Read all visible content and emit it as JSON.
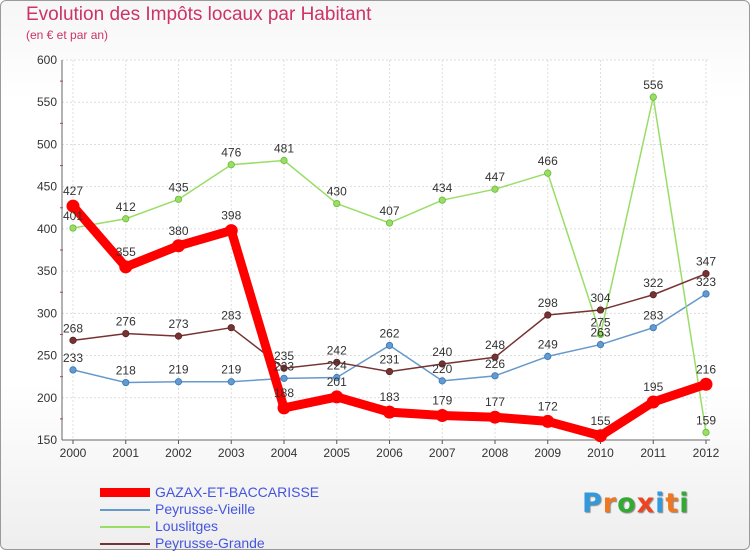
{
  "title": "Evolution des Impôts locaux par Habitant",
  "subtitle": "(en € et par an)",
  "logo": {
    "letters": [
      "P",
      "r",
      "o",
      "x",
      "i",
      "t",
      "i"
    ],
    "colors": [
      "#3399dd",
      "#ee7722",
      "#33aa33",
      "#ee4422",
      "#3399dd",
      "#ee7722",
      "#33aa33"
    ]
  },
  "chart_data": {
    "type": "line",
    "x": [
      "2000",
      "2001",
      "2002",
      "2003",
      "2004",
      "2005",
      "2006",
      "2007",
      "2008",
      "2009",
      "2010",
      "2011",
      "2012"
    ],
    "ylim": [
      150,
      600
    ],
    "yticks": [
      150,
      200,
      250,
      300,
      350,
      400,
      450,
      500,
      550,
      600
    ],
    "grid": true,
    "legend_position": "bottom-left",
    "series": [
      {
        "name": "GAZAX-ET-BACCARISSE",
        "color": "#ff0000",
        "values": [
          427,
          355,
          380,
          398,
          188,
          201,
          183,
          179,
          177,
          172,
          155,
          195,
          216
        ]
      },
      {
        "name": "Peyrusse-Vieille",
        "color": "#6699cc",
        "values": [
          233,
          218,
          219,
          219,
          223,
          224,
          262,
          220,
          226,
          249,
          263,
          283,
          323
        ]
      },
      {
        "name": "Louslitges",
        "color": "#99dd66",
        "values": [
          401,
          412,
          435,
          476,
          481,
          430,
          407,
          434,
          447,
          466,
          275,
          556,
          159
        ]
      },
      {
        "name": "Peyrusse-Grande",
        "color": "#773333",
        "values": [
          268,
          276,
          273,
          283,
          235,
          242,
          231,
          240,
          248,
          298,
          304,
          322,
          347
        ]
      }
    ]
  }
}
